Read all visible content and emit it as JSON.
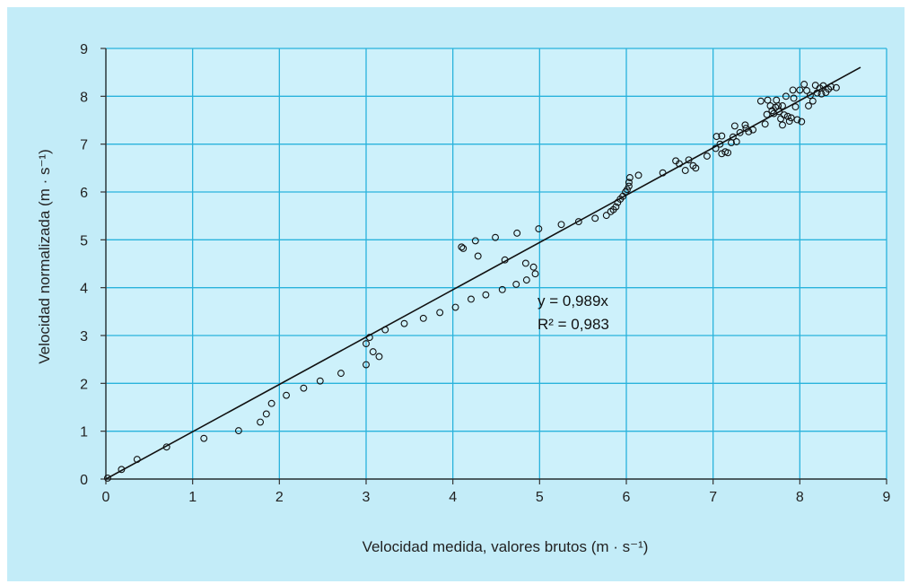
{
  "colors": {
    "frame_background": "#c3ecf8",
    "plot_background": "#cdf1fb",
    "grid": "#29b3dc",
    "axis": "#333333",
    "marker_edge": "#111111",
    "fit_line": "#111111"
  },
  "chart_data": {
    "type": "scatter",
    "title": "",
    "xlabel": "Velocidad medida, valores brutos  (m · s⁻¹)",
    "ylabel": "Velocidad normalizada (m · s⁻¹)",
    "xlim": [
      0,
      9
    ],
    "ylim": [
      0,
      9
    ],
    "xticks": [
      "0",
      "1",
      "2",
      "3",
      "4",
      "5",
      "6",
      "7",
      "8",
      "9"
    ],
    "yticks": [
      "0",
      "1",
      "2",
      "3",
      "4",
      "5",
      "6",
      "7",
      "8",
      "9"
    ],
    "grid": true,
    "legend": "none",
    "fit_line": {
      "slope": 0.989,
      "x_range": [
        0,
        8.7
      ]
    },
    "annotation": {
      "equation": "y = 0,989x",
      "r_squared": "R² = 0,983"
    },
    "points": [
      [
        0.02,
        0.02
      ],
      [
        0.18,
        0.2
      ],
      [
        0.36,
        0.41
      ],
      [
        0.7,
        0.67
      ],
      [
        1.13,
        0.85
      ],
      [
        1.53,
        1.01
      ],
      [
        1.78,
        1.19
      ],
      [
        1.85,
        1.36
      ],
      [
        1.91,
        1.58
      ],
      [
        2.08,
        1.75
      ],
      [
        2.28,
        1.9
      ],
      [
        2.47,
        2.05
      ],
      [
        2.71,
        2.21
      ],
      [
        3.0,
        2.39
      ],
      [
        3.0,
        2.83
      ],
      [
        3.04,
        2.96
      ],
      [
        3.08,
        2.66
      ],
      [
        3.15,
        2.56
      ],
      [
        3.22,
        3.12
      ],
      [
        3.44,
        3.25
      ],
      [
        3.66,
        3.36
      ],
      [
        3.85,
        3.48
      ],
      [
        4.03,
        3.59
      ],
      [
        4.21,
        3.76
      ],
      [
        4.38,
        3.85
      ],
      [
        4.57,
        3.96
      ],
      [
        4.73,
        4.07
      ],
      [
        4.85,
        4.16
      ],
      [
        4.95,
        4.29
      ],
      [
        4.93,
        4.43
      ],
      [
        4.84,
        4.51
      ],
      [
        4.6,
        4.58
      ],
      [
        4.1,
        4.85
      ],
      [
        4.12,
        4.82
      ],
      [
        4.29,
        4.66
      ],
      [
        4.26,
        4.98
      ],
      [
        4.49,
        5.05
      ],
      [
        4.74,
        5.14
      ],
      [
        4.99,
        5.23
      ],
      [
        5.25,
        5.32
      ],
      [
        5.45,
        5.38
      ],
      [
        5.64,
        5.45
      ],
      [
        5.77,
        5.51
      ],
      [
        5.82,
        5.59
      ],
      [
        5.85,
        5.63
      ],
      [
        5.88,
        5.69
      ],
      [
        5.9,
        5.78
      ],
      [
        5.93,
        5.85
      ],
      [
        5.96,
        5.91
      ],
      [
        5.99,
        6.0
      ],
      [
        6.01,
        6.05
      ],
      [
        6.03,
        6.12
      ],
      [
        6.03,
        6.2
      ],
      [
        6.04,
        6.3
      ],
      [
        6.14,
        6.35
      ],
      [
        6.42,
        6.4
      ],
      [
        6.57,
        6.65
      ],
      [
        6.61,
        6.59
      ],
      [
        6.68,
        6.45
      ],
      [
        6.72,
        6.67
      ],
      [
        6.77,
        6.55
      ],
      [
        6.8,
        6.5
      ],
      [
        6.93,
        6.75
      ],
      [
        7.03,
        6.91
      ],
      [
        7.04,
        7.16
      ],
      [
        7.08,
        7.0
      ],
      [
        7.1,
        7.17
      ],
      [
        7.1,
        6.8
      ],
      [
        7.14,
        6.84
      ],
      [
        7.17,
        6.82
      ],
      [
        7.21,
        7.03
      ],
      [
        7.23,
        7.15
      ],
      [
        7.25,
        7.38
      ],
      [
        7.27,
        7.05
      ],
      [
        7.31,
        7.24
      ],
      [
        7.37,
        7.4
      ],
      [
        7.38,
        7.33
      ],
      [
        7.41,
        7.26
      ],
      [
        7.46,
        7.3
      ],
      [
        7.55,
        7.9
      ],
      [
        7.6,
        7.42
      ],
      [
        7.62,
        7.62
      ],
      [
        7.63,
        7.92
      ],
      [
        7.66,
        7.8
      ],
      [
        7.68,
        7.7
      ],
      [
        7.7,
        7.64
      ],
      [
        7.72,
        7.77
      ],
      [
        7.73,
        7.92
      ],
      [
        7.75,
        7.8
      ],
      [
        7.76,
        7.68
      ],
      [
        7.78,
        7.53
      ],
      [
        7.8,
        7.8
      ],
      [
        7.8,
        7.4
      ],
      [
        7.82,
        7.61
      ],
      [
        7.84,
        8.0
      ],
      [
        7.86,
        7.58
      ],
      [
        7.88,
        7.48
      ],
      [
        7.9,
        7.55
      ],
      [
        7.92,
        8.13
      ],
      [
        7.93,
        7.96
      ],
      [
        7.95,
        7.78
      ],
      [
        7.97,
        7.51
      ],
      [
        8.0,
        8.13
      ],
      [
        8.02,
        7.47
      ],
      [
        8.05,
        8.25
      ],
      [
        8.08,
        8.12
      ],
      [
        8.1,
        7.8
      ],
      [
        8.12,
        8.02
      ],
      [
        8.15,
        7.9
      ],
      [
        8.18,
        8.23
      ],
      [
        8.2,
        8.07
      ],
      [
        8.23,
        8.17
      ],
      [
        8.25,
        8.05
      ],
      [
        8.27,
        8.22
      ],
      [
        8.3,
        8.08
      ],
      [
        8.33,
        8.15
      ],
      [
        8.36,
        8.2
      ],
      [
        8.42,
        8.18
      ]
    ]
  }
}
